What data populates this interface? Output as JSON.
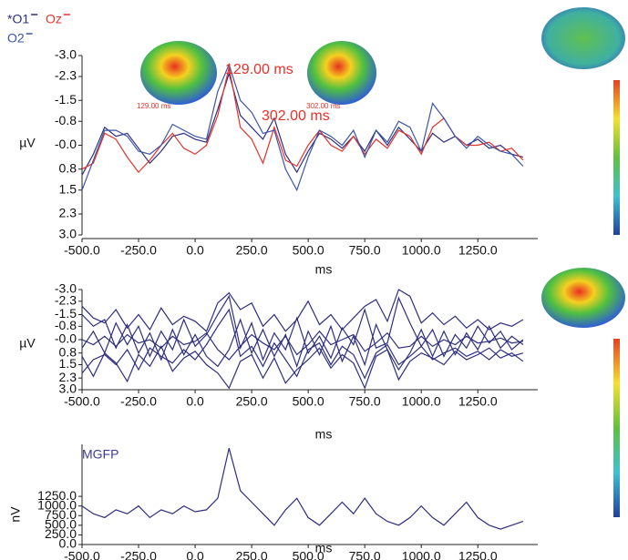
{
  "chart_data": [
    {
      "type": "line",
      "ylabel": "µV",
      "xlabel": "ms",
      "annotations": [
        "129.00 ms",
        "302.00 ms",
        "129.00 ms",
        "302.00 ms"
      ],
      "x": [
        -500,
        -450,
        -400,
        -350,
        -300,
        -250,
        -200,
        -150,
        -100,
        -50,
        0,
        50,
        100,
        150,
        200,
        250,
        300,
        350,
        400,
        450,
        500,
        550,
        600,
        650,
        700,
        750,
        800,
        850,
        900,
        950,
        1000,
        1050,
        1100,
        1150,
        1200,
        1250,
        1300,
        1350,
        1400,
        1450
      ],
      "xlim": [
        -500,
        1515
      ],
      "xticks": [
        {
          "value": -500,
          "label": "-500.0"
        },
        {
          "value": -250,
          "label": "-250.0"
        },
        {
          "value": 0,
          "label": "0.0"
        },
        {
          "value": 250,
          "label": "250.0"
        },
        {
          "value": 500,
          "label": "500.0"
        },
        {
          "value": 750,
          "label": "750.0"
        },
        {
          "value": 1000,
          "label": "1000.0"
        },
        {
          "value": 1250,
          "label": "1250.0"
        }
      ],
      "ylim": [
        3.0,
        -3.0
      ],
      "yticks": [
        {
          "value": -3,
          "label": "-3.0"
        },
        {
          "value": -2.3,
          "label": "-2.3"
        },
        {
          "value": -1.5,
          "label": "-1.5"
        },
        {
          "value": -0.8,
          "label": "-0.8"
        },
        {
          "value": 0,
          "label": "-0.0"
        },
        {
          "value": 0.8,
          "label": "0.8"
        },
        {
          "value": 1.5,
          "label": "1.5"
        },
        {
          "value": 2.3,
          "label": "2.3"
        },
        {
          "value": 3,
          "label": "3.0"
        }
      ],
      "series": [
        {
          "name": "*O1",
          "color": "#2b2f7f",
          "values": [
            1.0,
            0.3,
            -0.6,
            -0.3,
            -0.4,
            0.1,
            0.6,
            0.2,
            -0.3,
            -0.4,
            -0.2,
            -0.1,
            -1.2,
            -2.4,
            -1.0,
            -0.6,
            -0.2,
            -0.9,
            0.3,
            0.9,
            0.2,
            -0.4,
            -0.2,
            0.1,
            -0.3,
            0.2,
            -0.5,
            0.0,
            -0.6,
            -0.2,
            0.2,
            -0.4,
            -0.1,
            -0.3,
            0.0,
            -0.2,
            0.1,
            0.0,
            0.3,
            0.4
          ]
        },
        {
          "name": "Oz",
          "color": "#e8302a",
          "values": [
            0.8,
            0.6,
            -0.4,
            -0.2,
            0.4,
            0.9,
            0.5,
            0.0,
            -0.4,
            0.1,
            0.3,
            0.0,
            -1.0,
            -2.6,
            -0.6,
            -0.2,
            0.6,
            -0.6,
            0.5,
            0.7,
            0.0,
            -0.5,
            0.0,
            0.2,
            -0.3,
            0.3,
            -0.2,
            0.1,
            -0.5,
            -0.3,
            0.3,
            -0.6,
            -0.9,
            -0.3,
            0.0,
            0.0,
            -0.1,
            0.2,
            0.1,
            0.5
          ]
        },
        {
          "name": "O2",
          "color": "#3b55a8",
          "values": [
            1.5,
            0.5,
            -0.5,
            -0.5,
            -0.3,
            0.2,
            0.3,
            0.0,
            -0.7,
            -0.5,
            -0.3,
            -0.2,
            -1.8,
            -2.7,
            -1.5,
            -1.1,
            -0.4,
            -0.5,
            0.8,
            1.5,
            0.4,
            -0.5,
            -0.3,
            0.0,
            -0.5,
            0.4,
            -0.5,
            -0.1,
            -0.8,
            -0.6,
            0.2,
            -1.4,
            -0.9,
            -0.3,
            0.1,
            -0.3,
            0.0,
            0.2,
            0.3,
            0.7
          ]
        }
      ]
    },
    {
      "type": "line",
      "ylabel": "µV",
      "xlabel": "ms",
      "x": [
        -500,
        -450,
        -400,
        -350,
        -300,
        -250,
        -200,
        -150,
        -100,
        -50,
        0,
        50,
        100,
        150,
        200,
        250,
        300,
        350,
        400,
        450,
        500,
        550,
        600,
        650,
        700,
        750,
        800,
        850,
        900,
        950,
        1000,
        1050,
        1100,
        1150,
        1200,
        1250,
        1300,
        1350,
        1400,
        1450
      ],
      "xlim": [
        -500,
        1515
      ],
      "xticks": [
        {
          "value": -500,
          "label": "-500.0"
        },
        {
          "value": -250,
          "label": "-250.0"
        },
        {
          "value": 0,
          "label": "0.0"
        },
        {
          "value": 250,
          "label": "250.0"
        },
        {
          "value": 500,
          "label": "500.0"
        },
        {
          "value": 750,
          "label": "750.0"
        },
        {
          "value": 1000,
          "label": "1000.0"
        },
        {
          "value": 1250,
          "label": "1250.0"
        }
      ],
      "ylim": [
        3.0,
        -3.0
      ],
      "yticks": [
        {
          "value": -3,
          "label": "-3.0"
        },
        {
          "value": -2.3,
          "label": "-2.3"
        },
        {
          "value": -1.5,
          "label": "-1.5"
        },
        {
          "value": -0.8,
          "label": "-0.8"
        },
        {
          "value": 0,
          "label": "-0.0"
        },
        {
          "value": 0.8,
          "label": "0.8"
        },
        {
          "value": 1.5,
          "label": "1.5"
        },
        {
          "value": 2.3,
          "label": "2.3"
        },
        {
          "value": 3,
          "label": "3.0"
        }
      ],
      "series": [
        {
          "color": "#2e2e80",
          "values": [
            0.5,
            -0.5,
            0.8,
            -1.0,
            0.3,
            -0.8,
            1.0,
            -0.5,
            0.6,
            -1.2,
            0.4,
            -0.3,
            -1.5,
            -2.6,
            0.5,
            -1.0,
            1.2,
            -0.4,
            0.6,
            -1.3,
            0.8,
            -0.2,
            1.1,
            -0.7,
            0.3,
            -1.8,
            0.5,
            0.2,
            -2.5,
            -1.0,
            0.4,
            -0.6,
            1.0,
            -0.3,
            0.5,
            -0.8,
            0.2,
            -0.5,
            0.6,
            0.0
          ]
        },
        {
          "color": "#2e2e80",
          "values": [
            -1.5,
            -0.8,
            -1.2,
            0.5,
            -0.9,
            0.8,
            -0.4,
            1.2,
            -0.6,
            0.9,
            -0.3,
            1.0,
            1.6,
            0.6,
            -1.2,
            0.8,
            -0.6,
            1.0,
            -0.3,
            1.6,
            -0.5,
            0.9,
            -0.8,
            1.3,
            -0.2,
            1.5,
            -0.9,
            0.6,
            1.8,
            0.8,
            -0.6,
            1.0,
            -0.5,
            0.9,
            -0.4,
            0.6,
            -0.8,
            0.5,
            -0.2,
            0.3
          ]
        },
        {
          "color": "#2e2e80",
          "values": [
            2.0,
            1.2,
            0.9,
            1.5,
            0.6,
            1.8,
            0.5,
            1.0,
            1.4,
            0.6,
            1.2,
            0.3,
            -0.8,
            -1.8,
            1.0,
            0.4,
            1.6,
            0.2,
            1.2,
            2.2,
            0.6,
            0.2,
            1.5,
            0.4,
            0.9,
            2.3,
            0.8,
            0.3,
            1.5,
            1.0,
            0.4,
            1.2,
            0.8,
            0.5,
            1.0,
            0.7,
            1.2,
            0.6,
            1.0,
            0.8
          ]
        },
        {
          "color": "#2e2e80",
          "values": [
            -2.0,
            -1.3,
            -1.0,
            -1.8,
            -0.7,
            -1.5,
            -0.6,
            -1.9,
            -0.9,
            -1.4,
            -1.1,
            -0.5,
            -2.2,
            -2.8,
            -1.8,
            -2.2,
            -0.8,
            -1.5,
            -0.5,
            -1.2,
            -2.3,
            -0.9,
            -1.5,
            -0.6,
            -1.3,
            -2.0,
            -2.4,
            -1.1,
            -3.0,
            -2.6,
            -1.0,
            -1.6,
            -0.9,
            -1.4,
            -0.7,
            -1.2,
            -0.6,
            -1.0,
            -0.8,
            -1.2
          ]
        },
        {
          "color": "#2e2e80",
          "values": [
            0.0,
            0.3,
            -0.2,
            0.4,
            -0.3,
            0.2,
            0.0,
            0.5,
            -0.2,
            0.3,
            0.1,
            -0.4,
            0.6,
            1.2,
            0.4,
            -0.3,
            0.2,
            0.6,
            -0.2,
            0.9,
            0.3,
            -0.5,
            0.3,
            0.0,
            -0.3,
            0.7,
            0.2,
            -0.4,
            0.5,
            0.4,
            -0.2,
            0.4,
            0.0,
            0.3,
            -0.2,
            0.2,
            0.1,
            -0.1,
            0.2,
            0.1
          ]
        },
        {
          "color": "#2e2e80",
          "values": [
            1.0,
            2.2,
            0.8,
            1.4,
            2.5,
            0.9,
            1.6,
            0.4,
            1.9,
            1.1,
            0.7,
            1.5,
            2.0,
            2.9,
            1.3,
            0.9,
            2.3,
            1.1,
            2.6,
            1.8,
            1.2,
            0.5,
            1.7,
            0.9,
            1.4,
            2.9,
            1.0,
            0.6,
            2.4,
            1.3,
            0.8,
            1.1,
            1.5,
            0.7,
            1.2,
            0.9,
            0.5,
            1.1,
            0.8,
            1.3
          ]
        }
      ]
    },
    {
      "type": "line",
      "ylabel": "nV",
      "xlabel": "ms",
      "x": [
        -500,
        -450,
        -400,
        -350,
        -300,
        -250,
        -200,
        -150,
        -100,
        -50,
        0,
        50,
        100,
        150,
        200,
        250,
        300,
        350,
        400,
        450,
        500,
        550,
        600,
        650,
        700,
        750,
        800,
        850,
        900,
        950,
        1000,
        1050,
        1100,
        1150,
        1200,
        1250,
        1300,
        1350,
        1400,
        1450
      ],
      "xlim": [
        -500,
        1515
      ],
      "xticks": [
        {
          "value": -500,
          "label": "-500.0"
        },
        {
          "value": -250,
          "label": "-250.0"
        },
        {
          "value": 0,
          "label": "0.0"
        },
        {
          "value": 250,
          "label": "250.0"
        },
        {
          "value": 500,
          "label": "500.0"
        },
        {
          "value": 750,
          "label": "750.0"
        },
        {
          "value": 1000,
          "label": "1000.0"
        },
        {
          "value": 1250,
          "label": "1250.0"
        }
      ],
      "ylim": [
        0,
        2600
      ],
      "yticks": [
        {
          "value": 0,
          "label": "0.0"
        },
        {
          "value": 250,
          "label": "250.0"
        },
        {
          "value": 500,
          "label": "500.0"
        },
        {
          "value": 750,
          "label": "750.0"
        },
        {
          "value": 1000,
          "label": "1000.0"
        },
        {
          "value": 1250,
          "label": "1250.0"
        }
      ],
      "series": [
        {
          "name": "MGFP",
          "color": "#2e2e80",
          "values": [
            1000,
            800,
            700,
            900,
            800,
            1000,
            700,
            900,
            800,
            1000,
            850,
            900,
            1200,
            2500,
            1400,
            1100,
            800,
            500,
            900,
            1200,
            700,
            500,
            800,
            1100,
            800,
            1200,
            800,
            600,
            500,
            700,
            1000,
            700,
            500,
            800,
            1100,
            700,
            500,
            400,
            500,
            600
          ]
        }
      ]
    }
  ]
}
